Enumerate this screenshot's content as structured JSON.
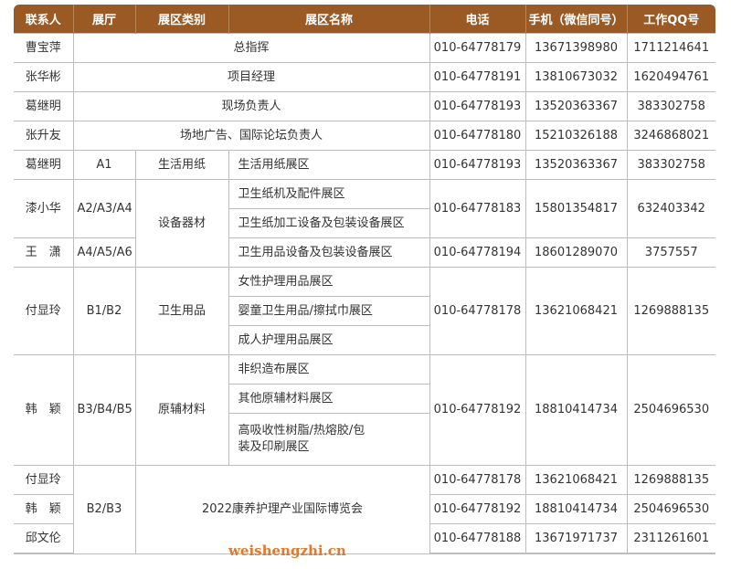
{
  "headers": [
    "联系人",
    "展厅",
    "展区类别",
    "展区名称",
    "电话",
    "手机（微信同号）",
    "工作QQ号"
  ],
  "rows": [
    {
      "contact": "曹宝萍",
      "area": "总指挥",
      "tel": "010-64778179",
      "mobile": "13671398980",
      "qq": "1711214641"
    },
    {
      "contact": "张华彬",
      "area": "项目经理",
      "tel": "010-64778191",
      "mobile": "13810673032",
      "qq": "1620494761"
    },
    {
      "contact": "葛继明",
      "area": "现场负责人",
      "tel": "010-64778193",
      "mobile": "13520363367",
      "qq": "383302758"
    },
    {
      "contact": "张升友",
      "area": "场地广告、国际论坛负责人",
      "tel": "010-64778180",
      "mobile": "15210326188",
      "qq": "3246868021"
    },
    {
      "contact": "葛继明",
      "hall": "A1",
      "category": "生活用纸",
      "area": "生活用纸展区",
      "tel": "010-64778193",
      "mobile": "13520363367",
      "qq": "383302758"
    },
    {
      "contact": "漆小华",
      "hall": "A2/A3/A4",
      "category": "设备器材",
      "areas": [
        "卫生纸机及配件展区",
        "卫生纸加工设备及包装设备展区"
      ],
      "tel": "010-64778183",
      "mobile": "15801354817",
      "qq": "632403342"
    },
    {
      "contact": "王　潇",
      "hall": "A4/A5/A6",
      "area": "卫生用品设备及包装设备展区",
      "tel": "010-64778194",
      "mobile": "18601289070",
      "qq": "3757557"
    },
    {
      "contact": "付显玲",
      "hall": "B1/B2",
      "category": "卫生用品",
      "areas": [
        "女性护理用品展区",
        "婴童卫生用品/擦拭巾展区",
        "成人护理用品展区"
      ],
      "tel": "010-64778178",
      "mobile": "13621068421",
      "qq": "1269888135"
    },
    {
      "contact": "韩　颖",
      "hall": "B3/B4/B5",
      "category": "原辅材料",
      "areas": [
        "非织造布展区",
        "其他原辅材料展区",
        "高吸收性树脂/热熔胶/包装及印刷展区"
      ],
      "tel": "010-64778192",
      "mobile": "18810414734",
      "qq": "2504696530"
    },
    {
      "hall": "B2/B3",
      "area": "2022康养护理产业国际博览会",
      "contacts": [
        {
          "contact": "付显玲",
          "tel": "010-64778178",
          "mobile": "13621068421",
          "qq": "1269888135"
        },
        {
          "contact": "韩　颖",
          "tel": "010-64778192",
          "mobile": "18810414734",
          "qq": "2504696530"
        },
        {
          "contact": "邱文伦",
          "tel": "010-64778188",
          "mobile": "13671971737",
          "qq": "2311261601"
        }
      ]
    }
  ],
  "watermark": "weishengzhi.cn"
}
